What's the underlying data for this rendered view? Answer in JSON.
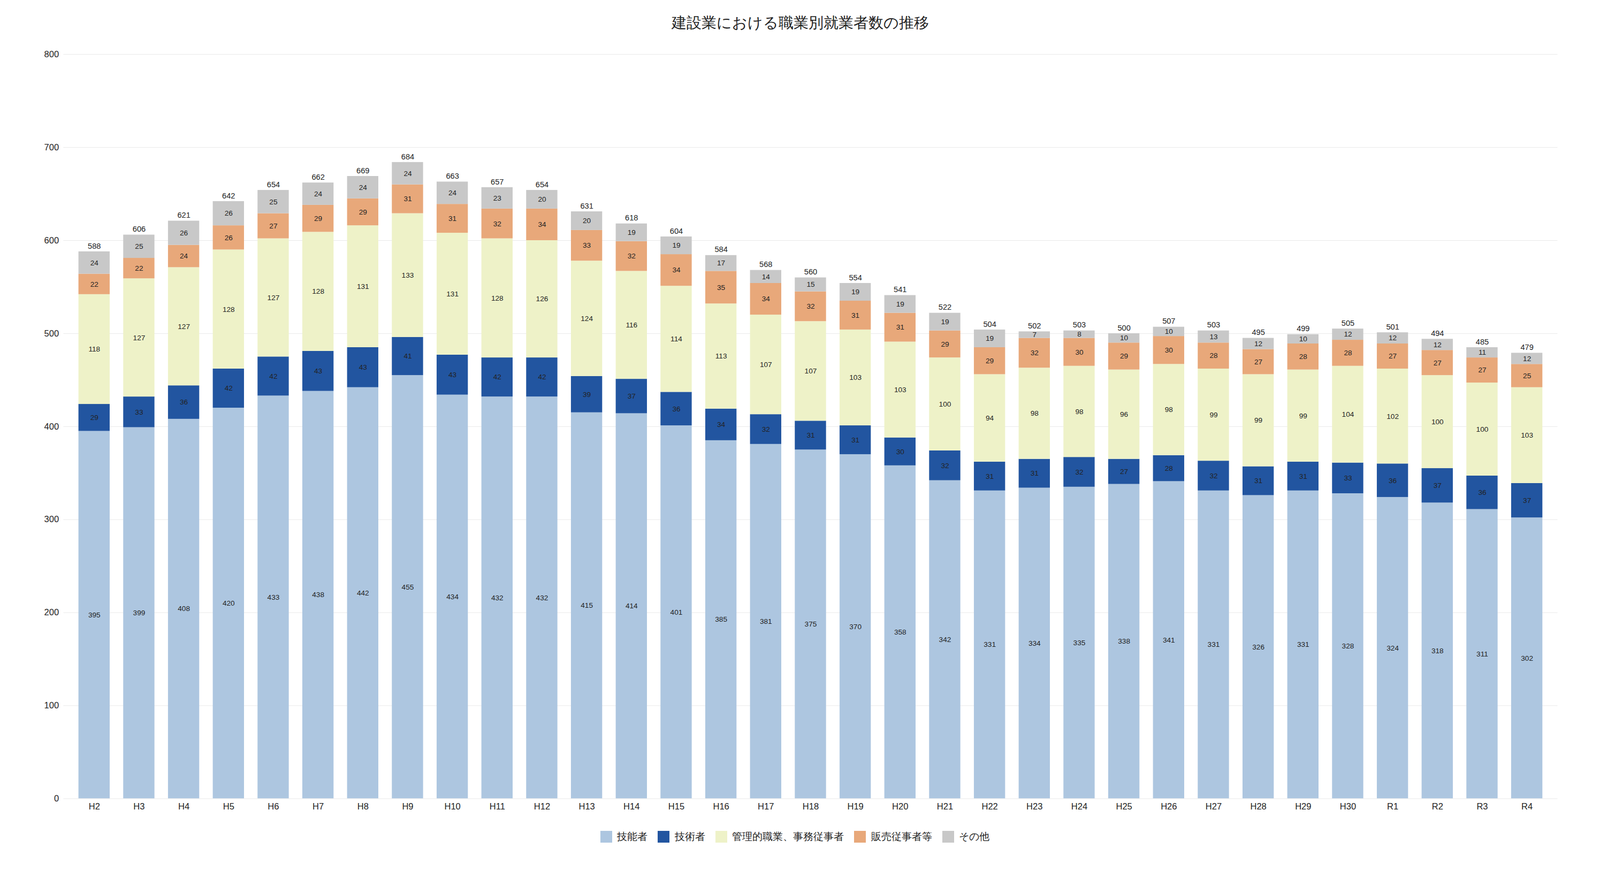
{
  "chart_data": {
    "type": "bar",
    "title": "建設業における職業別就業者数の推移",
    "categories": [
      "H2",
      "H3",
      "H4",
      "H5",
      "H6",
      "H7",
      "H8",
      "H9",
      "H10",
      "H11",
      "H12",
      "H13",
      "H14",
      "H15",
      "H16",
      "H17",
      "H18",
      "H19",
      "H20",
      "H21",
      "H22",
      "H23",
      "H24",
      "H25",
      "H26",
      "H27",
      "H28",
      "H29",
      "H30",
      "R1",
      "R2",
      "R3",
      "R4"
    ],
    "series": [
      {
        "name": "技能者",
        "color": "#adc6e0",
        "values": [
          395,
          399,
          408,
          420,
          433,
          438,
          442,
          455,
          434,
          432,
          432,
          415,
          414,
          401,
          385,
          381,
          375,
          370,
          358,
          342,
          331,
          334,
          335,
          338,
          341,
          331,
          326,
          331,
          328,
          324,
          318,
          311,
          302
        ]
      },
      {
        "name": "技術者",
        "color": "#2255a0",
        "values": [
          29,
          33,
          36,
          42,
          42,
          43,
          43,
          41,
          43,
          42,
          42,
          39,
          37,
          36,
          34,
          32,
          31,
          31,
          30,
          32,
          31,
          31,
          32,
          27,
          28,
          32,
          31,
          31,
          33,
          36,
          37,
          36,
          37
        ]
      },
      {
        "name": "管理的職業、事務従事者",
        "color": "#eef2c8",
        "values": [
          118,
          127,
          127,
          128,
          127,
          128,
          131,
          133,
          131,
          128,
          126,
          124,
          116,
          114,
          113,
          107,
          107,
          103,
          103,
          100,
          94,
          98,
          98,
          96,
          98,
          99,
          99,
          99,
          104,
          102,
          100,
          100,
          103
        ]
      },
      {
        "name": "販売従事者等",
        "color": "#e8a87a",
        "values": [
          22,
          22,
          24,
          26,
          27,
          29,
          29,
          31,
          31,
          32,
          34,
          33,
          32,
          34,
          35,
          34,
          32,
          31,
          31,
          29,
          29,
          32,
          30,
          29,
          30,
          28,
          27,
          28,
          28,
          27,
          27,
          27,
          25
        ]
      },
      {
        "name": "その他",
        "color": "#c8c8c8",
        "values": [
          24,
          25,
          26,
          26,
          25,
          24,
          24,
          24,
          24,
          23,
          20,
          20,
          19,
          19,
          17,
          14,
          15,
          19,
          19,
          19,
          19,
          7,
          8,
          10,
          10,
          13,
          12,
          10,
          12,
          12,
          12,
          11,
          12
        ]
      }
    ],
    "totals": [
      588,
      606,
      621,
      642,
      654,
      662,
      669,
      684,
      663,
      657,
      654,
      631,
      618,
      604,
      584,
      568,
      560,
      554,
      541,
      522,
      504,
      502,
      503,
      500,
      507,
      503,
      495,
      499,
      505,
      501,
      494,
      485,
      479
    ],
    "stacked": true,
    "data_labels": true,
    "ylim": [
      0,
      800
    ],
    "yticks": [
      0,
      100,
      200,
      300,
      400,
      500,
      600,
      700,
      800
    ],
    "grid": true,
    "legend": "bottom"
  }
}
